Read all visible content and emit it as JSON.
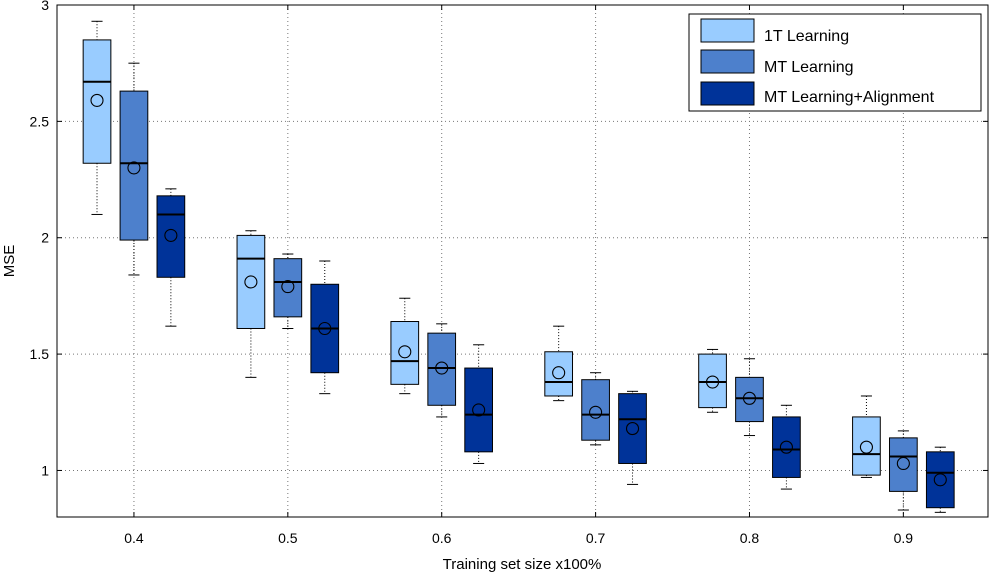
{
  "chart_data": {
    "type": "box",
    "title": "",
    "xlabel": "Training set size x100%",
    "ylabel": "MSE",
    "xlim": [
      0.35,
      0.955
    ],
    "ylim": [
      0.8,
      3.0
    ],
    "x_ticks": [
      "0.4",
      "0.5",
      "0.6",
      "0.7",
      "0.8",
      "0.9"
    ],
    "y_ticks": [
      "1",
      "1.5",
      "2",
      "2.5",
      "3"
    ],
    "grid": true,
    "legend_position": "top-right",
    "group_offset": 0.024,
    "box_width": 0.018,
    "series": [
      {
        "name": "1T Learning",
        "color": "#99ccff",
        "offset": -1,
        "boxes": [
          {
            "x": 0.4,
            "min": 2.1,
            "q1": 2.32,
            "median": 2.67,
            "q3": 2.85,
            "max": 2.93,
            "mean": 2.59
          },
          {
            "x": 0.5,
            "min": 1.4,
            "q1": 1.61,
            "median": 1.91,
            "q3": 2.01,
            "max": 2.03,
            "mean": 1.81
          },
          {
            "x": 0.6,
            "min": 1.33,
            "q1": 1.37,
            "median": 1.47,
            "q3": 1.64,
            "max": 1.74,
            "mean": 1.51
          },
          {
            "x": 0.7,
            "min": 1.3,
            "q1": 1.32,
            "median": 1.38,
            "q3": 1.51,
            "max": 1.62,
            "mean": 1.42
          },
          {
            "x": 0.8,
            "min": 1.25,
            "q1": 1.27,
            "median": 1.38,
            "q3": 1.5,
            "max": 1.52,
            "mean": 1.38
          },
          {
            "x": 0.9,
            "min": 0.97,
            "q1": 0.98,
            "median": 1.07,
            "q3": 1.23,
            "max": 1.32,
            "mean": 1.1
          }
        ]
      },
      {
        "name": "MT Learning",
        "color": "#4d80cc",
        "offset": 0,
        "boxes": [
          {
            "x": 0.4,
            "min": 1.84,
            "q1": 1.99,
            "median": 2.32,
            "q3": 2.63,
            "max": 2.75,
            "mean": 2.3
          },
          {
            "x": 0.5,
            "min": 1.61,
            "q1": 1.66,
            "median": 1.81,
            "q3": 1.91,
            "max": 1.93,
            "mean": 1.79
          },
          {
            "x": 0.6,
            "min": 1.23,
            "q1": 1.28,
            "median": 1.44,
            "q3": 1.59,
            "max": 1.63,
            "mean": 1.44
          },
          {
            "x": 0.7,
            "min": 1.11,
            "q1": 1.13,
            "median": 1.24,
            "q3": 1.39,
            "max": 1.42,
            "mean": 1.25
          },
          {
            "x": 0.8,
            "min": 1.15,
            "q1": 1.21,
            "median": 1.31,
            "q3": 1.4,
            "max": 1.48,
            "mean": 1.31
          },
          {
            "x": 0.9,
            "min": 0.83,
            "q1": 0.91,
            "median": 1.06,
            "q3": 1.14,
            "max": 1.17,
            "mean": 1.03
          }
        ]
      },
      {
        "name": "MT Learning+Alignment",
        "color": "#003399",
        "offset": 1,
        "boxes": [
          {
            "x": 0.4,
            "min": 1.62,
            "q1": 1.83,
            "median": 2.1,
            "q3": 2.18,
            "max": 2.21,
            "mean": 2.01
          },
          {
            "x": 0.5,
            "min": 1.33,
            "q1": 1.42,
            "median": 1.61,
            "q3": 1.8,
            "max": 1.9,
            "mean": 1.61
          },
          {
            "x": 0.6,
            "min": 1.03,
            "q1": 1.08,
            "median": 1.24,
            "q3": 1.44,
            "max": 1.54,
            "mean": 1.26
          },
          {
            "x": 0.7,
            "min": 0.94,
            "q1": 1.03,
            "median": 1.22,
            "q3": 1.33,
            "max": 1.34,
            "mean": 1.18
          },
          {
            "x": 0.8,
            "min": 0.92,
            "q1": 0.97,
            "median": 1.09,
            "q3": 1.23,
            "max": 1.28,
            "mean": 1.1
          },
          {
            "x": 0.9,
            "min": 0.82,
            "q1": 0.84,
            "median": 0.99,
            "q3": 1.08,
            "max": 1.1,
            "mean": 0.96
          }
        ]
      }
    ]
  }
}
